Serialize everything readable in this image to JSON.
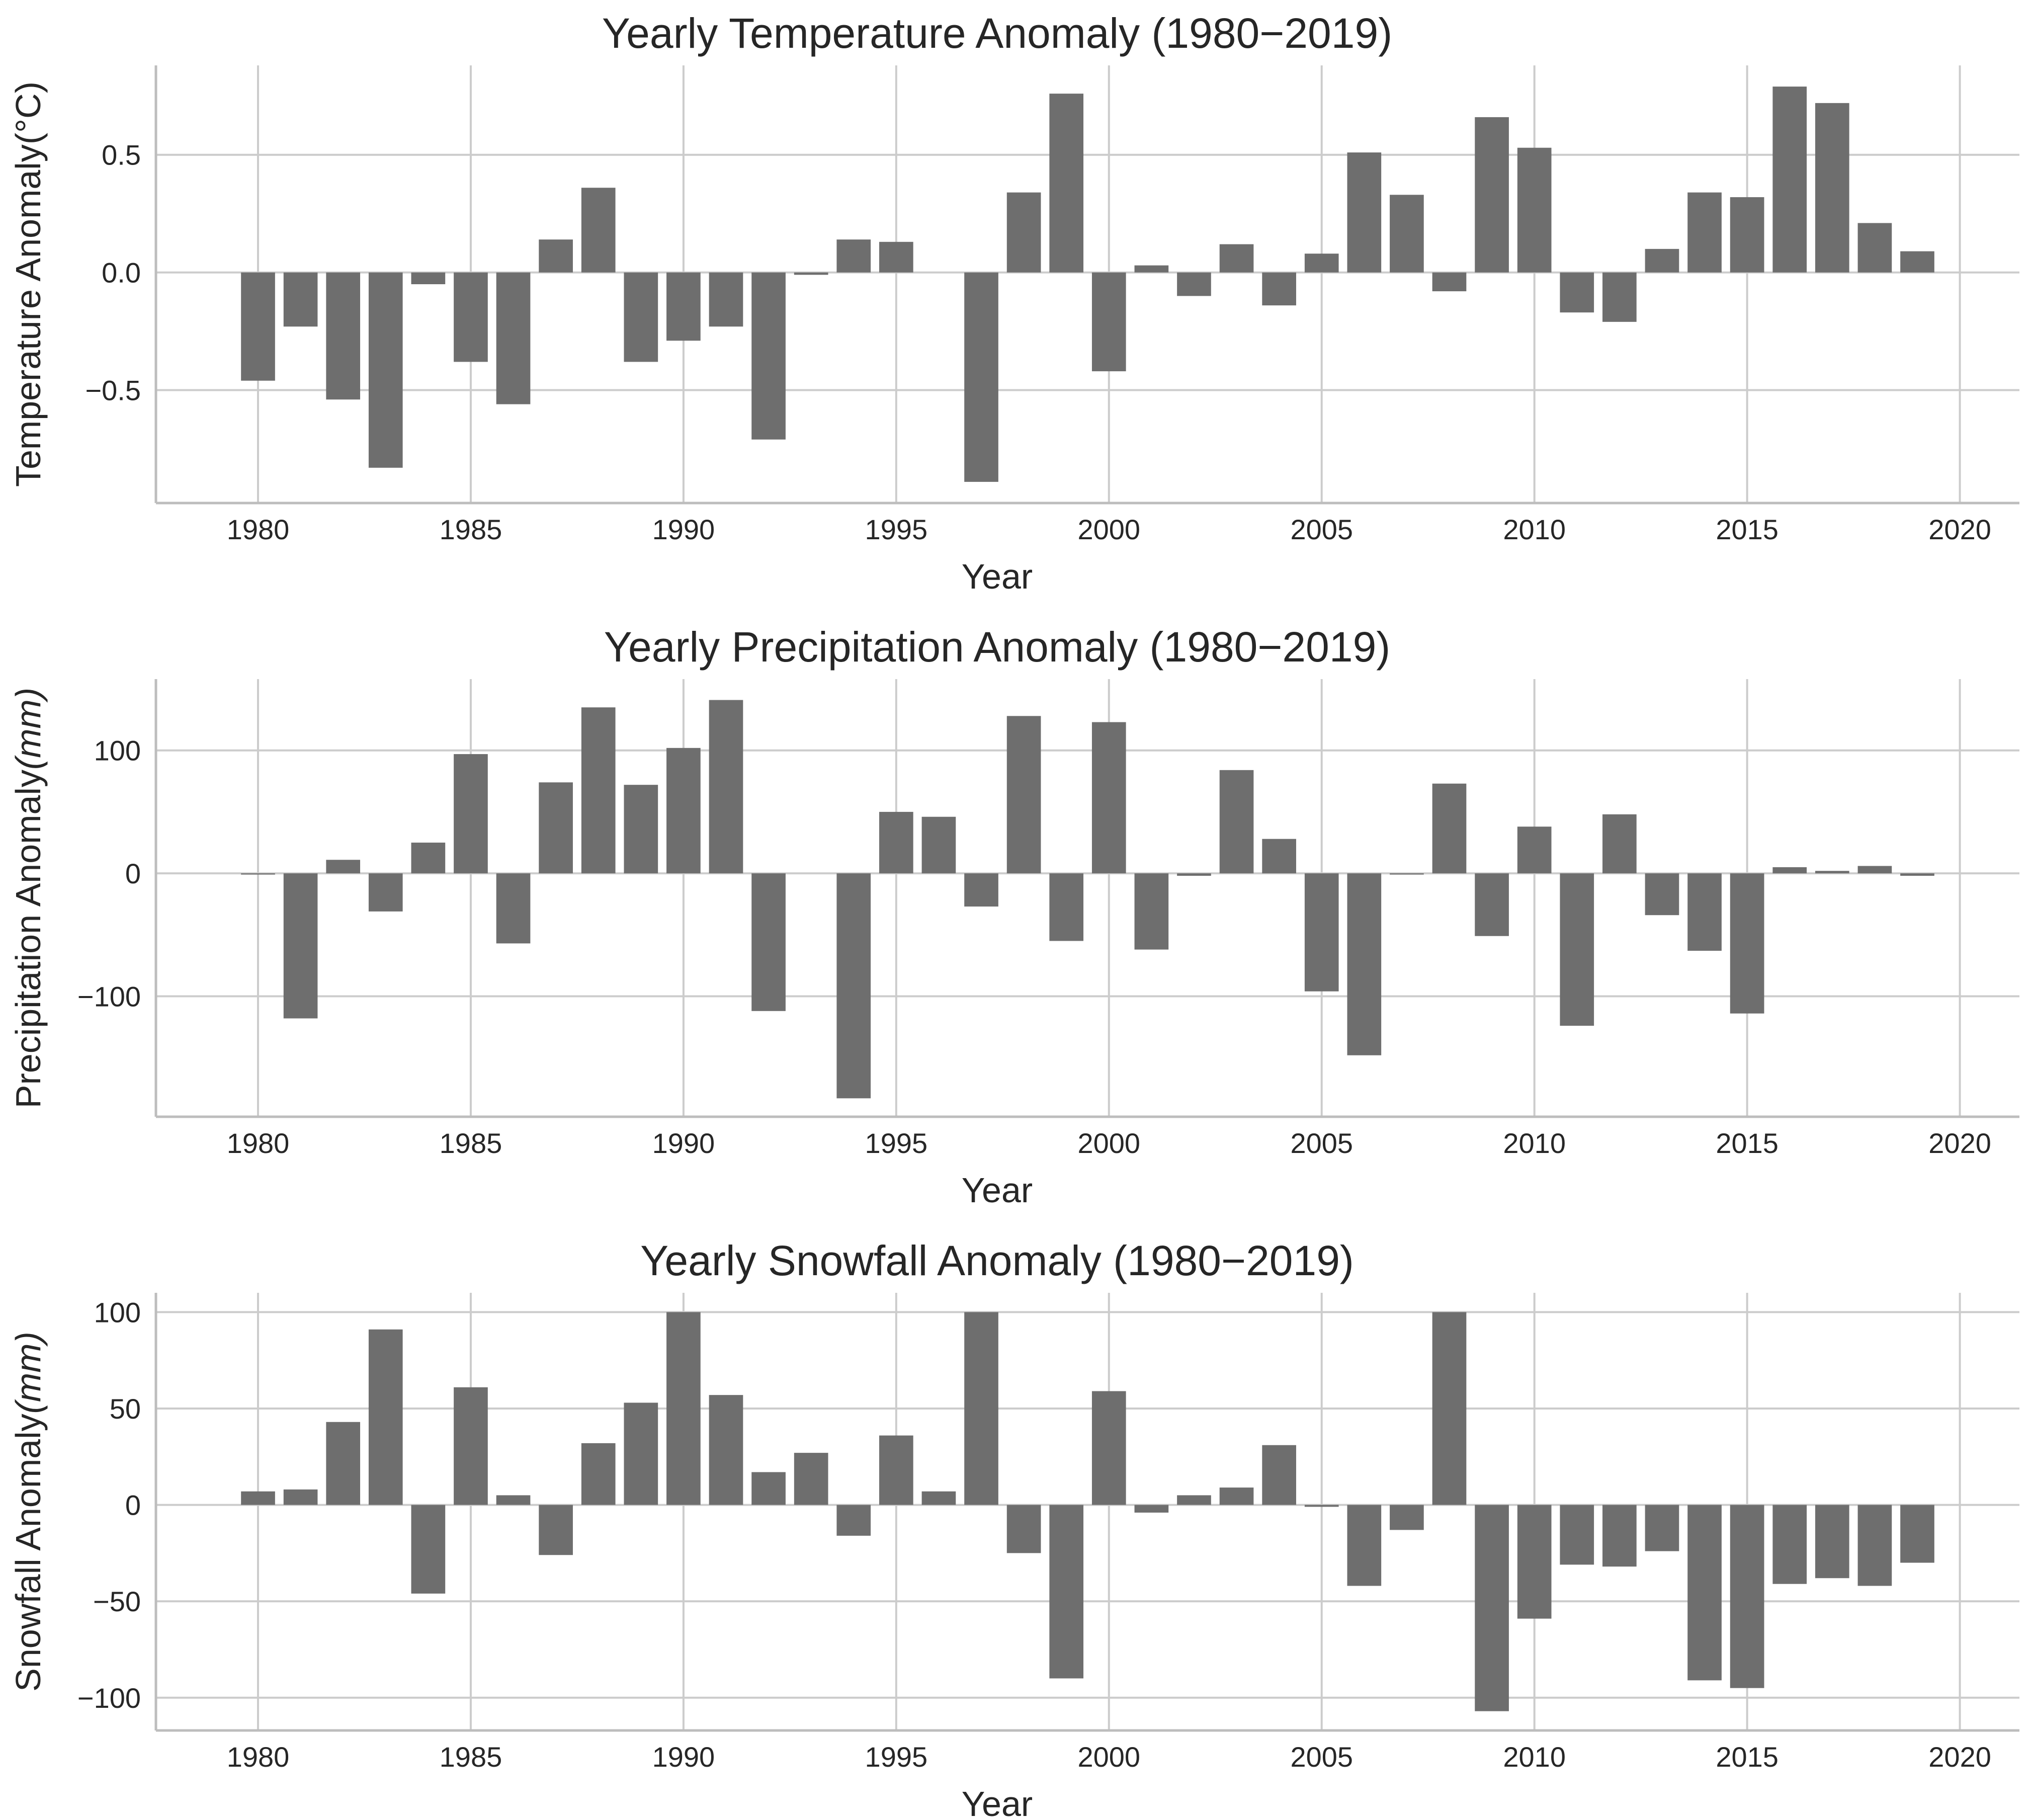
{
  "chart_data": [
    {
      "type": "bar",
      "title": "Yearly Temperature Anomaly (1980−2019)",
      "xlabel": "Year",
      "ylabel_text": "Temperature Anomaly",
      "ylabel_unit": "(°C)",
      "ylabel_unit_italic": false,
      "xlim": [
        1977.6,
        2021.4
      ],
      "ylim": [
        -0.98,
        0.88
      ],
      "xticks": [
        1980,
        1985,
        1990,
        1995,
        2000,
        2005,
        2010,
        2015,
        2020
      ],
      "yticks": [
        -0.5,
        0.0,
        0.5
      ],
      "ytick_labels": [
        "−0.5",
        "0.0",
        "0.5"
      ],
      "grid": true,
      "bar_color": "#6e6e6e",
      "x": [
        1980,
        1981,
        1982,
        1983,
        1984,
        1985,
        1986,
        1987,
        1988,
        1989,
        1990,
        1991,
        1992,
        1993,
        1994,
        1995,
        1996,
        1997,
        1998,
        1999,
        2000,
        2001,
        2002,
        2003,
        2004,
        2005,
        2006,
        2007,
        2008,
        2009,
        2010,
        2011,
        2012,
        2013,
        2014,
        2015,
        2016,
        2017,
        2018,
        2019
      ],
      "values": [
        -0.46,
        -0.23,
        -0.54,
        -0.83,
        -0.05,
        -0.38,
        -0.56,
        0.14,
        0.36,
        -0.38,
        -0.29,
        -0.23,
        -0.71,
        -0.01,
        0.14,
        0.13,
        0.0,
        -0.89,
        0.34,
        0.76,
        -0.42,
        0.03,
        -0.1,
        0.12,
        -0.14,
        0.08,
        0.51,
        0.33,
        -0.08,
        0.66,
        0.53,
        -0.17,
        -0.21,
        0.1,
        0.34,
        0.32,
        0.79,
        0.72,
        0.21,
        0.09
      ]
    },
    {
      "type": "bar",
      "title": "Yearly Precipitation Anomaly (1980−2019)",
      "xlabel": "Year",
      "ylabel_text": "Precipitation Anomaly",
      "ylabel_unit": "(mm)",
      "ylabel_unit_italic": true,
      "xlim": [
        1977.6,
        2021.4
      ],
      "ylim": [
        -198,
        158
      ],
      "xticks": [
        1980,
        1985,
        1990,
        1995,
        2000,
        2005,
        2010,
        2015,
        2020
      ],
      "yticks": [
        -100,
        0,
        100
      ],
      "ytick_labels": [
        "−100",
        "0",
        "100"
      ],
      "grid": true,
      "bar_color": "#6e6e6e",
      "x": [
        1980,
        1981,
        1982,
        1983,
        1984,
        1985,
        1986,
        1987,
        1988,
        1989,
        1990,
        1991,
        1992,
        1993,
        1994,
        1995,
        1996,
        1997,
        1998,
        1999,
        2000,
        2001,
        2002,
        2003,
        2004,
        2005,
        2006,
        2007,
        2008,
        2009,
        2010,
        2011,
        2012,
        2013,
        2014,
        2015,
        2016,
        2017,
        2018,
        2019
      ],
      "values": [
        -1,
        -118,
        11,
        -31,
        25,
        97,
        -57,
        74,
        135,
        72,
        102,
        141,
        -112,
        0,
        -183,
        50,
        46,
        -27,
        128,
        -55,
        123,
        -62,
        -2,
        84,
        28,
        -96,
        -148,
        -1,
        73,
        -51,
        38,
        -124,
        48,
        -34,
        -63,
        -114,
        5,
        2,
        6,
        -2
      ]
    },
    {
      "type": "bar",
      "title": "Yearly Snowfall Anomaly (1980−2019)",
      "xlabel": "Year",
      "ylabel_text": "Snowfall Anomaly",
      "ylabel_unit": "(mm)",
      "ylabel_unit_italic": true,
      "xlim": [
        1977.6,
        2021.4
      ],
      "ylim": [
        -117,
        110
      ],
      "xticks": [
        1980,
        1985,
        1990,
        1995,
        2000,
        2005,
        2010,
        2015,
        2020
      ],
      "yticks": [
        -100,
        -50,
        0,
        50,
        100
      ],
      "ytick_labels": [
        "−100",
        "−50",
        "0",
        "50",
        "100"
      ],
      "grid": true,
      "bar_color": "#6e6e6e",
      "x": [
        1980,
        1981,
        1982,
        1983,
        1984,
        1985,
        1986,
        1987,
        1988,
        1989,
        1990,
        1991,
        1992,
        1993,
        1994,
        1995,
        1996,
        1997,
        1998,
        1999,
        2000,
        2001,
        2002,
        2003,
        2004,
        2005,
        2006,
        2007,
        2008,
        2009,
        2010,
        2011,
        2012,
        2013,
        2014,
        2015,
        2016,
        2017,
        2018,
        2019
      ],
      "values": [
        7,
        8,
        43,
        91,
        -46,
        61,
        5,
        -26,
        32,
        53,
        100,
        57,
        17,
        27,
        -16,
        36,
        7,
        100,
        -25,
        -90,
        59,
        -4,
        5,
        9,
        31,
        -1,
        -42,
        -13,
        100,
        -107,
        -59,
        -31,
        -32,
        -24,
        -91,
        -95,
        -41,
        -38,
        -42,
        -30
      ]
    }
  ]
}
